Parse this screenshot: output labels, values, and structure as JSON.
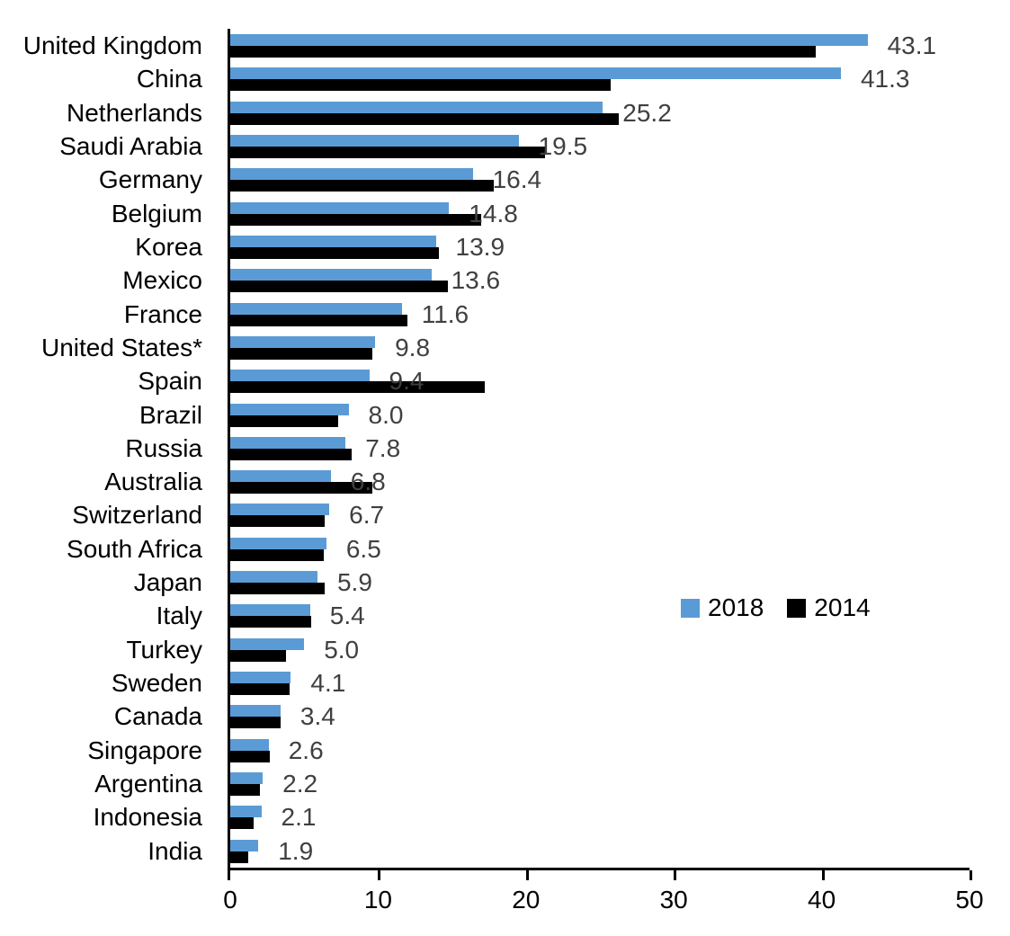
{
  "chart_data": {
    "type": "bar",
    "orientation": "horizontal",
    "title": "",
    "xlabel": "",
    "ylabel": "",
    "xlim": [
      0,
      50
    ],
    "x_ticks": [
      "0",
      "10",
      "20",
      "30",
      "40",
      "50"
    ],
    "grid": false,
    "legend_position": "middle-right",
    "categories": [
      "United Kingdom",
      "China",
      "Netherlands",
      "Saudi Arabia",
      "Germany",
      "Belgium",
      "Korea",
      "Mexico",
      "France",
      "United States*",
      "Spain",
      "Brazil",
      "Russia",
      "Australia",
      "Switzerland",
      "South Africa",
      "Japan",
      "Italy",
      "Turkey",
      "Sweden",
      "Canada",
      "Singapore",
      "Argentina",
      "Indonesia",
      "India"
    ],
    "series": [
      {
        "name": "2018",
        "color": "#5B9BD5",
        "values": [
          43.1,
          41.3,
          25.2,
          19.5,
          16.4,
          14.8,
          13.9,
          13.6,
          11.6,
          9.8,
          9.4,
          8.0,
          7.8,
          6.8,
          6.7,
          6.5,
          5.9,
          5.4,
          5.0,
          4.1,
          3.4,
          2.6,
          2.2,
          2.1,
          1.9
        ]
      },
      {
        "name": "2014",
        "color": "#000000",
        "values": [
          39.6,
          25.7,
          26.3,
          21.3,
          17.8,
          17.0,
          14.1,
          14.7,
          12.0,
          9.6,
          17.2,
          7.3,
          8.2,
          9.6,
          6.4,
          6.3,
          6.4,
          5.5,
          3.8,
          4.0,
          3.4,
          2.7,
          2.0,
          1.6,
          1.2
        ]
      }
    ],
    "data_labels": {
      "series": "2018",
      "color": "#404040",
      "values": [
        "43.1",
        "41.3",
        "25.2",
        "19.5",
        "16.4",
        "14.8",
        "13.9",
        "13.6",
        "11.6",
        "9.8",
        "9.4",
        "8.0",
        "7.8",
        "6.8",
        "6.7",
        "6.5",
        "5.9",
        "5.4",
        "5.0",
        "4.1",
        "3.4",
        "2.6",
        "2.2",
        "2.1",
        "1.9"
      ]
    },
    "axis_color": "#000000"
  }
}
